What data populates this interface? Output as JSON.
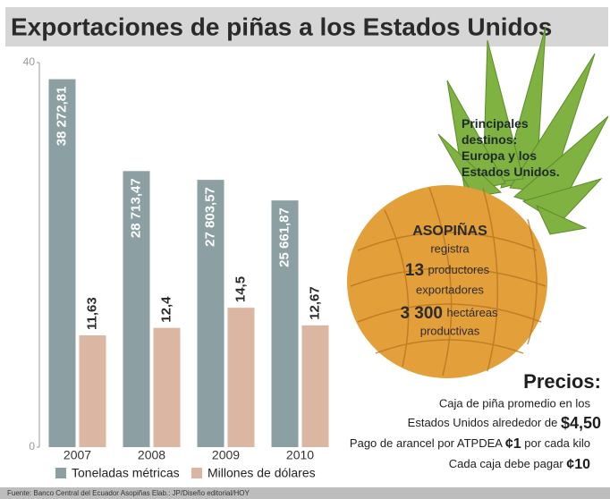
{
  "chart_data": {
    "type": "bar",
    "title": "Exportaciones de piñas a los Estados Unidos",
    "categories": [
      "2007",
      "2008",
      "2009",
      "2010"
    ],
    "series": [
      {
        "name": "Toneladas métricas",
        "color": "#8c9fa2",
        "values": [
          38.27281,
          28.71347,
          27.80357,
          25.66187
        ],
        "value_labels": [
          "38 272,81",
          "28 713,47",
          "27 803,57",
          "25 661,87"
        ]
      },
      {
        "name": "Millones de dólares",
        "color": "#dbb6a2",
        "values": [
          11.63,
          12.4,
          14.5,
          12.67
        ],
        "value_labels": [
          "11,63",
          "12,4",
          "14,5",
          "12,67"
        ]
      }
    ],
    "ylim": [
      0,
      40
    ],
    "yticks": [
      0,
      40
    ],
    "grid": false,
    "source": "Fuente: Banco Central del Ecuador Asopiñas Elab.: JP/Diseño editorial/HOY"
  },
  "infographic": {
    "destinations": [
      "Principales",
      "destinos:",
      "Europa y los",
      "Estados Unidos."
    ],
    "asopinas": [
      "ASOPIÑAS",
      "registra",
      "13",
      "productores",
      "exportadores",
      "3 300",
      "hectáreas",
      "productivas"
    ],
    "prices": {
      "title": "Precios:",
      "line1": "Caja de piña promedio en los",
      "line2": "Estados Unidos alrededor de",
      "line2_value": "$4,50",
      "line3": "Pago de arancel por ATPDEA",
      "line3_value": "¢1",
      "line3_end": "por cada kilo",
      "line4": "Cada caja debe pagar",
      "line4_value": "¢10"
    }
  }
}
